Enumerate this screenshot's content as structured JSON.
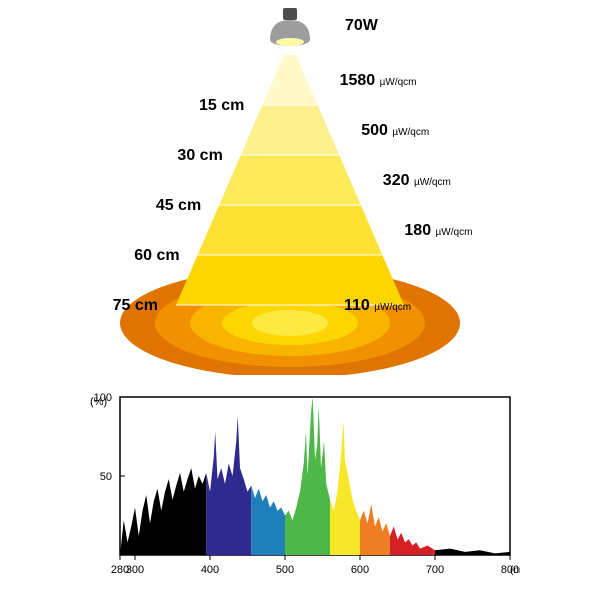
{
  "lamp": {
    "wattage": "70W",
    "distances_cm": [
      "15 cm",
      "30 cm",
      "45 cm",
      "60 cm",
      "75 cm"
    ],
    "readings": [
      "1580",
      "500",
      "320",
      "180",
      "110"
    ],
    "reading_unit": "µW/qcm",
    "cone_colors": [
      "#fff9c9",
      "#fdf08f",
      "#fcea59",
      "#fde234",
      "#fdd500"
    ],
    "ellipse_colors": [
      "#e07400",
      "#f29100",
      "#f9b400",
      "#fdd500",
      "#fdea40"
    ],
    "lamp_body": "#9d9d9d",
    "lamp_cap": "#4d4d4d",
    "lamp_lens": "#fff9a5",
    "text_color": "#000000"
  },
  "spectrum": {
    "y_label": "(%)",
    "y_ticks": [
      "100",
      "50"
    ],
    "x_label": "(nm)",
    "x_ticks": [
      "280",
      "300",
      "400",
      "500",
      "600",
      "700",
      "800"
    ],
    "border": "#000000",
    "bg": "#ffffff",
    "bands": [
      {
        "from": 280,
        "to": 395,
        "color": "#000000"
      },
      {
        "from": 395,
        "to": 455,
        "color": "#2f2a8f"
      },
      {
        "from": 455,
        "to": 500,
        "color": "#1e7fbb"
      },
      {
        "from": 500,
        "to": 560,
        "color": "#4db748"
      },
      {
        "from": 560,
        "to": 600,
        "color": "#f6e728"
      },
      {
        "from": 600,
        "to": 640,
        "color": "#ef7d23"
      },
      {
        "from": 640,
        "to": 700,
        "color": "#d62027"
      },
      {
        "from": 700,
        "to": 800,
        "color": "#000000"
      }
    ],
    "profile": [
      [
        280,
        0
      ],
      [
        285,
        22
      ],
      [
        290,
        8
      ],
      [
        295,
        18
      ],
      [
        300,
        30
      ],
      [
        305,
        12
      ],
      [
        310,
        28
      ],
      [
        315,
        38
      ],
      [
        320,
        20
      ],
      [
        325,
        34
      ],
      [
        330,
        42
      ],
      [
        335,
        28
      ],
      [
        340,
        40
      ],
      [
        345,
        48
      ],
      [
        350,
        35
      ],
      [
        355,
        44
      ],
      [
        360,
        52
      ],
      [
        365,
        40
      ],
      [
        370,
        48
      ],
      [
        375,
        55
      ],
      [
        380,
        42
      ],
      [
        385,
        50
      ],
      [
        390,
        45
      ],
      [
        395,
        52
      ],
      [
        400,
        40
      ],
      [
        405,
        62
      ],
      [
        407,
        78
      ],
      [
        410,
        48
      ],
      [
        415,
        55
      ],
      [
        420,
        45
      ],
      [
        425,
        58
      ],
      [
        430,
        50
      ],
      [
        435,
        72
      ],
      [
        437,
        88
      ],
      [
        440,
        55
      ],
      [
        445,
        48
      ],
      [
        450,
        40
      ],
      [
        455,
        44
      ],
      [
        460,
        36
      ],
      [
        465,
        42
      ],
      [
        470,
        34
      ],
      [
        475,
        38
      ],
      [
        480,
        30
      ],
      [
        485,
        34
      ],
      [
        490,
        28
      ],
      [
        495,
        30
      ],
      [
        500,
        25
      ],
      [
        505,
        28
      ],
      [
        510,
        22
      ],
      [
        515,
        30
      ],
      [
        520,
        40
      ],
      [
        525,
        58
      ],
      [
        528,
        78
      ],
      [
        530,
        50
      ],
      [
        535,
        92
      ],
      [
        537,
        100
      ],
      [
        540,
        60
      ],
      [
        543,
        70
      ],
      [
        545,
        95
      ],
      [
        548,
        55
      ],
      [
        552,
        72
      ],
      [
        555,
        45
      ],
      [
        560,
        35
      ],
      [
        565,
        28
      ],
      [
        570,
        40
      ],
      [
        575,
        65
      ],
      [
        578,
        85
      ],
      [
        580,
        60
      ],
      [
        585,
        48
      ],
      [
        590,
        35
      ],
      [
        595,
        28
      ],
      [
        600,
        22
      ],
      [
        605,
        28
      ],
      [
        610,
        20
      ],
      [
        615,
        32
      ],
      [
        620,
        18
      ],
      [
        625,
        24
      ],
      [
        630,
        15
      ],
      [
        635,
        20
      ],
      [
        640,
        12
      ],
      [
        645,
        18
      ],
      [
        650,
        10
      ],
      [
        655,
        14
      ],
      [
        660,
        8
      ],
      [
        665,
        10
      ],
      [
        670,
        6
      ],
      [
        675,
        8
      ],
      [
        680,
        4
      ],
      [
        690,
        6
      ],
      [
        700,
        3
      ],
      [
        720,
        4
      ],
      [
        740,
        2
      ],
      [
        760,
        3
      ],
      [
        780,
        1
      ],
      [
        800,
        2
      ]
    ]
  }
}
